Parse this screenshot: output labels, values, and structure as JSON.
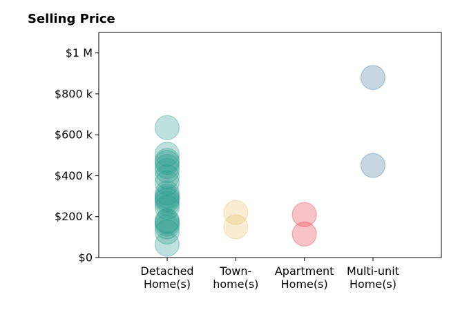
{
  "chart_data": {
    "type": "scatter",
    "title": "Selling Price",
    "xlabel": "",
    "ylabel": "",
    "categories": [
      [
        "Detached",
        "Home(s)"
      ],
      [
        "Town-",
        "home(s)"
      ],
      [
        "Apartment",
        "Home(s)"
      ],
      [
        "Multi-unit",
        "Home(s)"
      ]
    ],
    "series": [
      {
        "category_index": 0,
        "color": "#2a9d8f",
        "values": [
          65000,
          125000,
          150000,
          165000,
          175000,
          180000,
          245000,
          265000,
          280000,
          290000,
          300000,
          315000,
          365000,
          395000,
          425000,
          445000,
          465000,
          475000,
          505000,
          635000
        ]
      },
      {
        "category_index": 1,
        "color": "#e9c46a",
        "values": [
          150000,
          220000
        ]
      },
      {
        "category_index": 2,
        "color": "#e63946",
        "values": [
          115000,
          210000
        ]
      },
      {
        "category_index": 3,
        "color": "#457b9d",
        "values": [
          450000,
          880000
        ]
      }
    ],
    "ylim": [
      0,
      1100000
    ],
    "yticks": [
      {
        "value": 0,
        "label": "$0"
      },
      {
        "value": 200000,
        "label": "$200 k"
      },
      {
        "value": 400000,
        "label": "$400 k"
      },
      {
        "value": 600000,
        "label": "$600 k"
      },
      {
        "value": 800000,
        "label": "$800 k"
      },
      {
        "value": 1000000,
        "label": "$1 M"
      }
    ],
    "grid": false,
    "marker_alpha": 0.3
  }
}
